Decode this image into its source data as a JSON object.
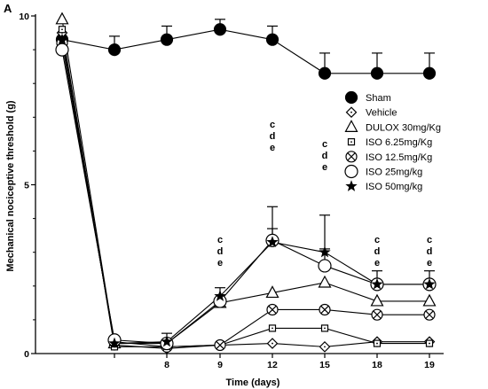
{
  "chart_data": {
    "type": "line",
    "panel_label": "A",
    "xlabel": "Time (days)",
    "ylabel": "Mechanical nociceptive threshold (g)",
    "ylim": [
      0,
      10
    ],
    "y_ticks": [
      "0",
      "5",
      "10"
    ],
    "x_tick_labels": [
      "8",
      "9",
      "12",
      "15",
      "18",
      "19"
    ],
    "x_positions": [
      "base",
      "0",
      "8",
      "9",
      "12",
      "15",
      "18",
      "19"
    ],
    "grid": false,
    "legend_position": "right",
    "series": [
      {
        "name": "Sham",
        "marker": "filled-circle",
        "values": [
          9.3,
          9.0,
          9.3,
          9.6,
          9.3,
          8.3,
          8.3,
          8.3
        ],
        "errors": [
          0,
          0.4,
          0.4,
          0.3,
          0.4,
          0.6,
          0.6,
          0.6
        ]
      },
      {
        "name": "Vehicle",
        "marker": "open-diamond",
        "values": [
          9.5,
          0.25,
          0.15,
          0.25,
          0.3,
          0.2,
          0.35,
          0.35
        ],
        "errors": [
          0,
          0,
          0,
          0,
          0,
          0,
          0,
          0
        ]
      },
      {
        "name": "DULOX 30mg/Kg",
        "marker": "open-triangle",
        "values": [
          9.9,
          0.3,
          0.3,
          1.5,
          1.8,
          2.1,
          1.55,
          1.55
        ],
        "errors": [
          0,
          0,
          0,
          0,
          0,
          0,
          0,
          0
        ]
      },
      {
        "name": "ISO 6.25mg/Kg",
        "marker": "dotted-square",
        "values": [
          9.6,
          0.2,
          0.2,
          0.25,
          0.75,
          0.75,
          0.3,
          0.3
        ],
        "errors": [
          0,
          0,
          0,
          0,
          0,
          0,
          0,
          0
        ]
      },
      {
        "name": "ISO 12.5mg/Kg",
        "marker": "crossed-circle",
        "values": [
          9.2,
          0.35,
          0.2,
          0.25,
          1.3,
          1.3,
          1.15,
          1.15
        ],
        "errors": [
          0,
          0,
          0,
          0,
          0,
          0,
          0,
          0
        ]
      },
      {
        "name": "ISO 25mg/kg",
        "marker": "open-circle",
        "values": [
          9.0,
          0.4,
          0.3,
          1.55,
          3.35,
          2.6,
          2.05,
          2.05
        ],
        "errors": [
          0,
          0,
          0.3,
          0.4,
          1.0,
          0.5,
          0.4,
          0.4
        ]
      },
      {
        "name": "ISO 50mg/kg",
        "marker": "star",
        "values": [
          9.3,
          0.3,
          0.35,
          1.7,
          3.3,
          3.0,
          2.05,
          2.05
        ],
        "errors": [
          0,
          0,
          0,
          0,
          0.4,
          1.1,
          0,
          0
        ]
      }
    ],
    "annotations": [
      {
        "x": "9",
        "lines": [
          "c",
          "d",
          "e"
        ]
      },
      {
        "x": "12",
        "lines": [
          "c",
          "d",
          "e"
        ]
      },
      {
        "x": "15",
        "lines": [
          "c",
          "d",
          "e"
        ]
      },
      {
        "x": "18",
        "lines": [
          "c",
          "d",
          "e"
        ]
      },
      {
        "x": "19",
        "lines": [
          "c",
          "d",
          "e"
        ]
      }
    ]
  }
}
